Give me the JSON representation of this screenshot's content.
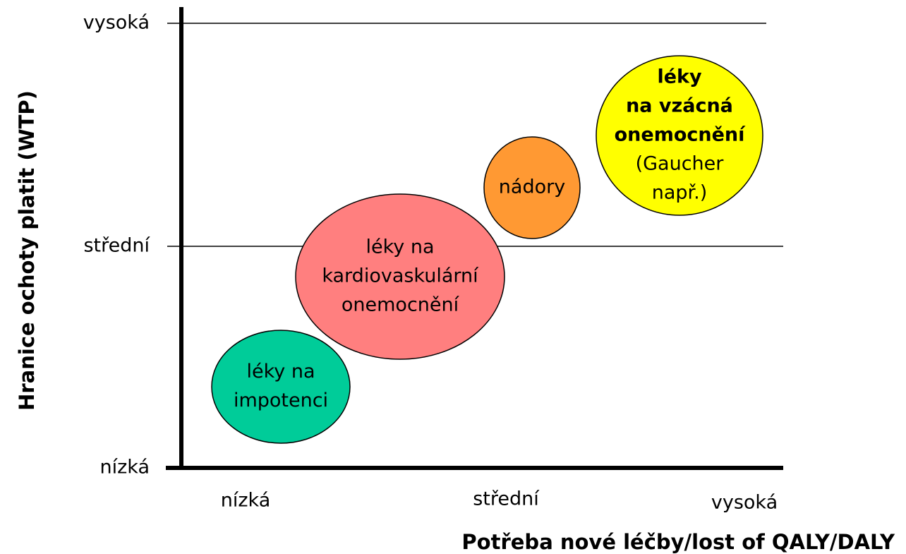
{
  "y_axis": {
    "title": "Hranice ochoty platit (WTP)",
    "levels": [
      "vysoká",
      "střední",
      "nízká"
    ]
  },
  "x_axis": {
    "title": "Potřeba nové léčby/lost of QALY/DALY",
    "levels": [
      "nízká",
      "střední",
      "vysoká"
    ]
  },
  "bubbles": [
    {
      "color": "#00cc99",
      "lines": [
        {
          "text": "léky na",
          "bold": false
        },
        {
          "text": "impotenci",
          "bold": false
        }
      ]
    },
    {
      "color": "#ff7f7f",
      "lines": [
        {
          "text": "léky na",
          "bold": false
        },
        {
          "text": "kardiovaskulární",
          "bold": false
        },
        {
          "text": "onemocnění",
          "bold": false
        }
      ]
    },
    {
      "color": "#ff9933",
      "lines": [
        {
          "text": "nádory",
          "bold": false
        }
      ]
    },
    {
      "color": "#ffff00",
      "lines": [
        {
          "text": "léky",
          "bold": true
        },
        {
          "text": "na vzácná",
          "bold": true
        },
        {
          "text": "onemocnění",
          "bold": true
        },
        {
          "text": "(Gaucher",
          "bold": false
        },
        {
          "text": "např.)",
          "bold": false
        }
      ]
    }
  ]
}
